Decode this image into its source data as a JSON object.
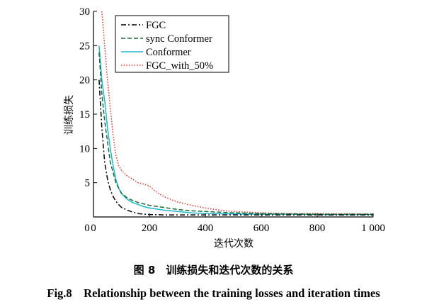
{
  "chart_data": {
    "type": "line",
    "title": "",
    "xlabel": "迭代次数",
    "ylabel": "训练损失",
    "xlim": [
      0,
      1000
    ],
    "ylim": [
      0,
      30
    ],
    "xticks": [
      0,
      200,
      400,
      600,
      800,
      1000
    ],
    "xtick_labels": [
      "0",
      "200",
      "400",
      "600",
      "800",
      "1 000"
    ],
    "yticks": [
      5,
      10,
      15,
      20,
      25,
      30
    ],
    "ytick_labels": [
      "5",
      "10",
      "15",
      "20",
      "25",
      "30"
    ],
    "grid": false,
    "legend_position": "top-left",
    "series": [
      {
        "name": "FGC",
        "color": "#000000",
        "style": "dash-dot",
        "points": [
          [
            20,
            20
          ],
          [
            30,
            13
          ],
          [
            40,
            8
          ],
          [
            50,
            5.5
          ],
          [
            60,
            4
          ],
          [
            70,
            3
          ],
          [
            80,
            2.3
          ],
          [
            90,
            1.8
          ],
          [
            100,
            1.4
          ],
          [
            120,
            1.0
          ],
          [
            140,
            0.7
          ],
          [
            160,
            0.5
          ],
          [
            180,
            0.4
          ],
          [
            200,
            0.35
          ],
          [
            250,
            0.3
          ],
          [
            300,
            0.3
          ],
          [
            400,
            0.3
          ],
          [
            500,
            0.3
          ],
          [
            600,
            0.3
          ],
          [
            700,
            0.3
          ],
          [
            800,
            0.3
          ],
          [
            900,
            0.3
          ],
          [
            1000,
            0.3
          ]
        ]
      },
      {
        "name": "sync Conformer",
        "color": "#1a6b3a",
        "style": "dashed",
        "points": [
          [
            20,
            24
          ],
          [
            30,
            18
          ],
          [
            40,
            14
          ],
          [
            50,
            11
          ],
          [
            60,
            8
          ],
          [
            70,
            6.5
          ],
          [
            80,
            5
          ],
          [
            90,
            4.2
          ],
          [
            100,
            3.5
          ],
          [
            120,
            2.8
          ],
          [
            140,
            2.4
          ],
          [
            160,
            2.1
          ],
          [
            180,
            1.9
          ],
          [
            200,
            1.7
          ],
          [
            250,
            1.4
          ],
          [
            300,
            1.1
          ],
          [
            350,
            0.9
          ],
          [
            400,
            0.8
          ],
          [
            500,
            0.6
          ],
          [
            600,
            0.5
          ],
          [
            700,
            0.45
          ],
          [
            800,
            0.4
          ],
          [
            900,
            0.4
          ],
          [
            1000,
            0.4
          ]
        ]
      },
      {
        "name": "Conformer",
        "color": "#1fb8c8",
        "style": "solid",
        "points": [
          [
            20,
            25
          ],
          [
            30,
            20
          ],
          [
            40,
            17
          ],
          [
            50,
            13
          ],
          [
            60,
            10
          ],
          [
            70,
            7.5
          ],
          [
            80,
            5.5
          ],
          [
            90,
            4.2
          ],
          [
            100,
            3.4
          ],
          [
            120,
            2.6
          ],
          [
            140,
            2.1
          ],
          [
            160,
            1.8
          ],
          [
            180,
            1.5
          ],
          [
            200,
            1.3
          ],
          [
            250,
            1.0
          ],
          [
            300,
            0.8
          ],
          [
            350,
            0.6
          ],
          [
            400,
            0.5
          ],
          [
            500,
            0.45
          ],
          [
            600,
            0.4
          ],
          [
            700,
            0.4
          ],
          [
            800,
            0.35
          ],
          [
            900,
            0.35
          ],
          [
            1000,
            0.35
          ]
        ]
      },
      {
        "name": "FGC_with_50%",
        "color": "#e23a3a",
        "style": "dotted",
        "points": [
          [
            30,
            30
          ],
          [
            40,
            25
          ],
          [
            50,
            20
          ],
          [
            60,
            16
          ],
          [
            70,
            12
          ],
          [
            80,
            9
          ],
          [
            90,
            7.5
          ],
          [
            100,
            6.8
          ],
          [
            120,
            6
          ],
          [
            140,
            5.5
          ],
          [
            160,
            5
          ],
          [
            180,
            4.8
          ],
          [
            200,
            4.5
          ],
          [
            220,
            3.8
          ],
          [
            250,
            3
          ],
          [
            280,
            2.5
          ],
          [
            300,
            2.2
          ],
          [
            350,
            1.7
          ],
          [
            400,
            1.3
          ],
          [
            450,
            1
          ],
          [
            500,
            0.8
          ],
          [
            550,
            0.7
          ],
          [
            600,
            0.6
          ],
          [
            700,
            0.5
          ],
          [
            800,
            0.5
          ],
          [
            900,
            0.45
          ],
          [
            1000,
            0.45
          ]
        ]
      }
    ]
  },
  "caption": {
    "chinese": "图 8　训练损失和迭代次数的关系",
    "english": "Fig.8　Relationship between the training losses and iteration times"
  }
}
